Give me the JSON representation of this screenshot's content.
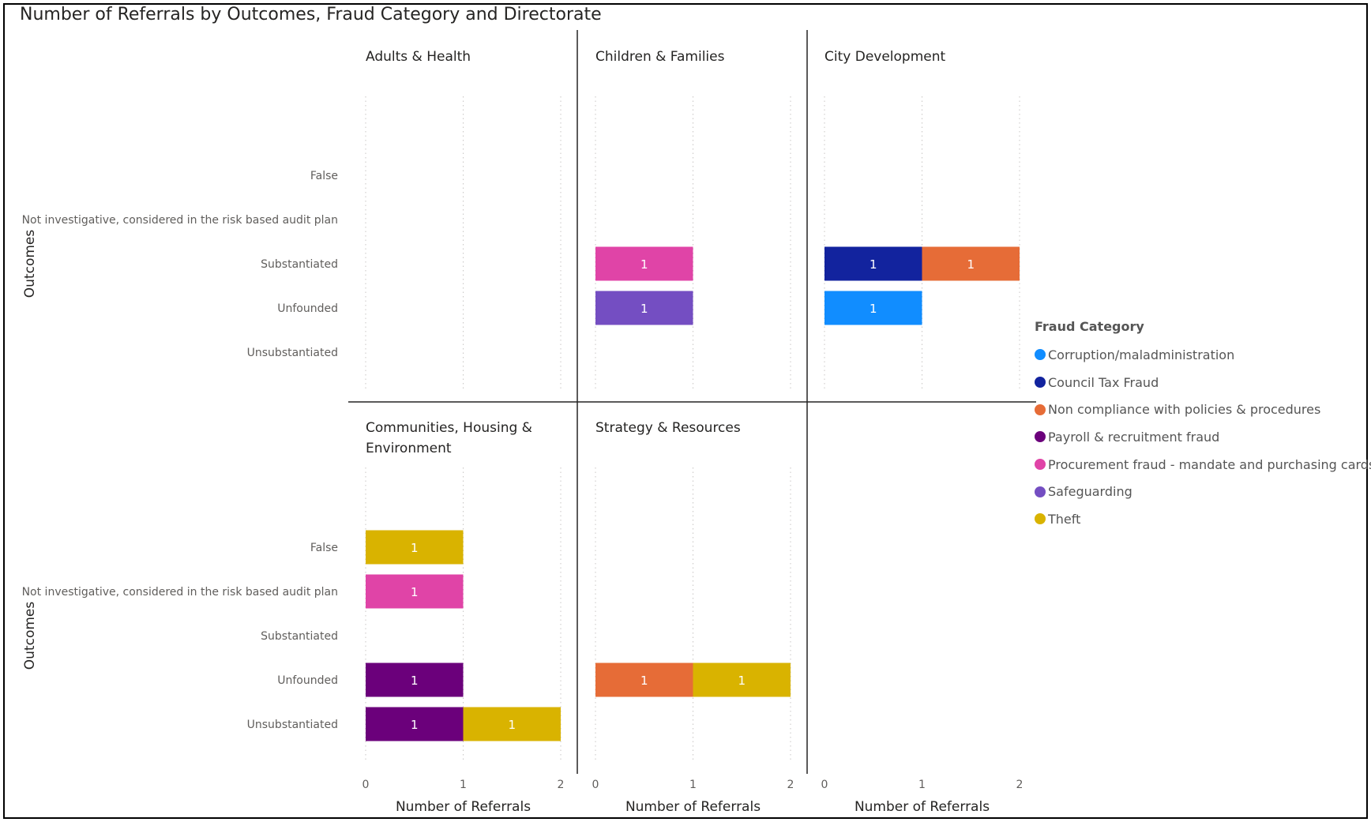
{
  "chart_data": {
    "type": "bar",
    "orientation": "horizontal",
    "stacked": true,
    "title": "Number of Referrals by Outcomes, Fraud Category and Directorate",
    "ylabel": "Outcomes",
    "xlabel": "Number of Referrals",
    "xlim": [
      0,
      2
    ],
    "xticks": [
      "0",
      "1",
      "2"
    ],
    "gridlines": "vertical, dotted",
    "data_labels": true,
    "categories": [
      "False",
      "Not investigative, considered in the risk based audit plan",
      "Substantiated",
      "Unfounded",
      "Unsubstantiated"
    ],
    "legend": {
      "title": "Fraud Category",
      "placement": "right",
      "items": [
        {
          "name": "Corruption/maladministration",
          "color": "#118DFF"
        },
        {
          "name": "Council Tax Fraud",
          "color": "#12239E"
        },
        {
          "name": "Non compliance with policies & procedures",
          "color": "#E66C37"
        },
        {
          "name": "Payroll & recruitment fraud",
          "color": "#6B007B"
        },
        {
          "name": "Procurement fraud - mandate and purchasing cards",
          "color": "#E044A7"
        },
        {
          "name": "Safeguarding",
          "color": "#744EC2"
        },
        {
          "name": "Theft",
          "color": "#D9B300"
        }
      ]
    },
    "panels": [
      {
        "title": "Adults & Health",
        "segments": []
      },
      {
        "title": "Children & Families",
        "segments": [
          {
            "outcome": "Substantiated",
            "category": "Procurement fraud - mandate and purchasing cards",
            "value": 1
          },
          {
            "outcome": "Unfounded",
            "category": "Safeguarding",
            "value": 1
          }
        ]
      },
      {
        "title": "City Development",
        "segments": [
          {
            "outcome": "Substantiated",
            "category": "Council Tax Fraud",
            "value": 1
          },
          {
            "outcome": "Substantiated",
            "category": "Non compliance with policies & procedures",
            "value": 1
          },
          {
            "outcome": "Unfounded",
            "category": "Corruption/maladministration",
            "value": 1
          }
        ]
      },
      {
        "title": "Communities, Housing & Environment",
        "segments": [
          {
            "outcome": "False",
            "category": "Theft",
            "value": 1
          },
          {
            "outcome": "Not investigative, considered in the risk based audit plan",
            "category": "Procurement fraud - mandate and purchasing cards",
            "value": 1
          },
          {
            "outcome": "Unfounded",
            "category": "Payroll & recruitment fraud",
            "value": 1
          },
          {
            "outcome": "Unsubstantiated",
            "category": "Payroll & recruitment fraud",
            "value": 1
          },
          {
            "outcome": "Unsubstantiated",
            "category": "Theft",
            "value": 1
          }
        ]
      },
      {
        "title": "Strategy & Resources",
        "segments": [
          {
            "outcome": "Unfounded",
            "category": "Non compliance with policies & procedures",
            "value": 1
          },
          {
            "outcome": "Unfounded",
            "category": "Theft",
            "value": 1
          }
        ]
      }
    ]
  }
}
